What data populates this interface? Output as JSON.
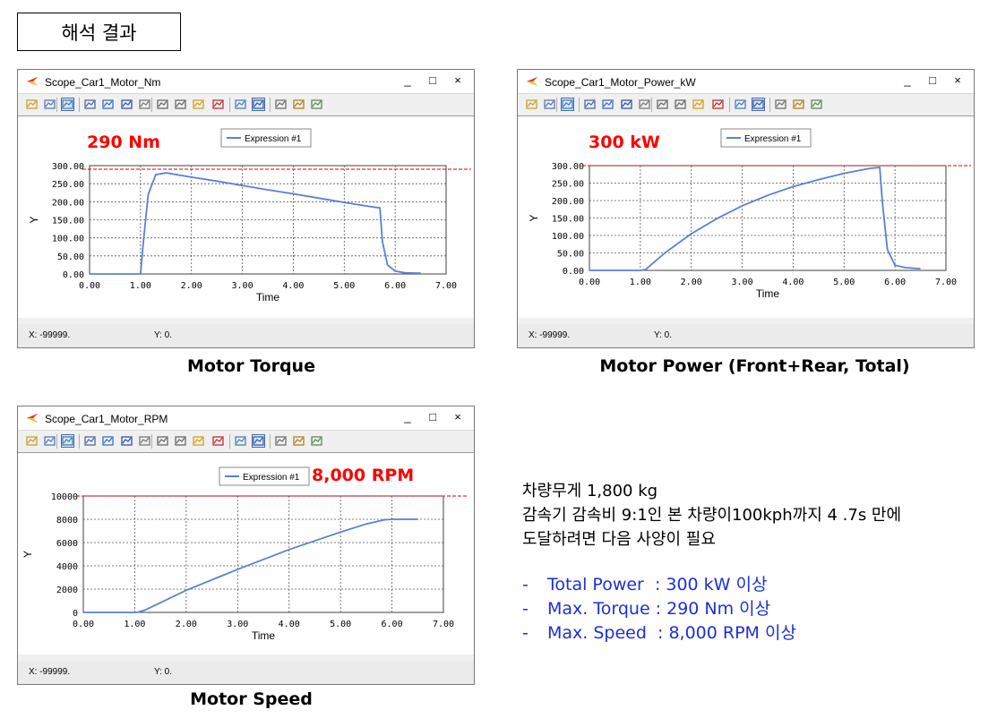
{
  "page_title": "해석 결과",
  "scopes": [
    {
      "window_title": "Scope_Car1_Motor_Nm",
      "legend": "Expression #1",
      "annotation": "290 Nm",
      "caption": "Motor Torque",
      "status_x": "X:  -99999.",
      "status_y": "Y:  0.",
      "ylabel": "Y",
      "xlabel": "Time",
      "x_ticks": [
        "0.00",
        "1.00",
        "2.00",
        "3.00",
        "4.00",
        "5.00",
        "6.00",
        "7.00"
      ],
      "y_ticks": [
        "0.00",
        "50.00",
        "100.00",
        "150.00",
        "200.00",
        "250.00",
        "300.00"
      ]
    },
    {
      "window_title": "Scope_Car1_Motor_Power_kW",
      "legend": "Expression #1",
      "annotation": "300 kW",
      "caption": "Motor Power (Front+Rear, Total)",
      "status_x": "X:  -99999.",
      "status_y": "Y:  0.",
      "ylabel": "Y",
      "xlabel": "Time",
      "x_ticks": [
        "0.00",
        "1.00",
        "2.00",
        "3.00",
        "4.00",
        "5.00",
        "6.00",
        "7.00"
      ],
      "y_ticks": [
        "0.00",
        "50.00",
        "100.00",
        "150.00",
        "200.00",
        "250.00",
        "300.00"
      ]
    },
    {
      "window_title": "Scope_Car1_Motor_RPM",
      "legend": "Expression #1",
      "annotation": "8,000 RPM",
      "caption": "Motor Speed",
      "status_x": "X:  -99999.",
      "status_y": "Y:  0.",
      "ylabel": "Y",
      "xlabel": "Time",
      "x_ticks": [
        "0.00",
        "1.00",
        "2.00",
        "3.00",
        "4.00",
        "5.00",
        "6.00",
        "7.00"
      ],
      "y_ticks": [
        "0",
        "2000",
        "4000",
        "6000",
        "8000",
        "10000"
      ]
    }
  ],
  "window_buttons": {
    "minimize": "_",
    "maximize": "□",
    "close": "×"
  },
  "toolbar_icons": [
    "open-icon",
    "copy-icon",
    "plot-icon",
    "zoom-icon",
    "autoscale-icon",
    "3d-icon",
    "grid-icon",
    "pan-h-icon",
    "pan-v-icon",
    "export-icon",
    "delete-icon",
    "chart-settings-icon",
    "legend-icon",
    "tools-icon",
    "properties-icon",
    "table-icon"
  ],
  "notes": {
    "line1": "차량무게 1,800 kg",
    "line2": "감속기 감속비 9:1인 본 차량이100kph까지 4 .7s 만에",
    "line3": "도달하려면 다음 사양이 필요"
  },
  "bullets": [
    {
      "dash": "-",
      "text": "Total Power  : 300 kW 이상"
    },
    {
      "dash": "-",
      "text": "Max. Torque : 290 Nm 이상"
    },
    {
      "dash": "-",
      "text": "Max. Speed  : 8,000 RPM 이상"
    }
  ],
  "colors": {
    "series": "#5b7fd6",
    "annotation": "#ff0000",
    "reference_line": "#d40000",
    "bullets": "#1c2fd8"
  },
  "chart_data": [
    {
      "type": "line",
      "xlabel": "Time",
      "ylabel": "Y",
      "xlim": [
        0,
        7
      ],
      "ylim": [
        0,
        300
      ],
      "grid": true,
      "legend_position": "top-center",
      "reference_line": 290,
      "series": [
        {
          "name": "Expression #1",
          "x": [
            0,
            1.0,
            1.05,
            1.15,
            1.3,
            1.5,
            2.0,
            2.5,
            3.0,
            3.5,
            4.0,
            4.5,
            5.0,
            5.5,
            5.7,
            5.75,
            5.85,
            6.0,
            6.2,
            6.5
          ],
          "y": [
            0,
            0,
            80,
            220,
            275,
            280,
            268,
            257,
            245,
            233,
            222,
            210,
            198,
            187,
            183,
            90,
            25,
            8,
            3,
            2
          ]
        }
      ]
    },
    {
      "type": "line",
      "xlabel": "Time",
      "ylabel": "Y",
      "xlim": [
        0,
        7
      ],
      "ylim": [
        0,
        300
      ],
      "grid": true,
      "legend_position": "top-center",
      "reference_line": 300,
      "series": [
        {
          "name": "Expression #1",
          "x": [
            0,
            1.0,
            1.1,
            1.5,
            2.0,
            2.5,
            3.0,
            3.5,
            4.0,
            4.5,
            5.0,
            5.5,
            5.7,
            5.75,
            5.85,
            6.0,
            6.2,
            6.5
          ],
          "y": [
            0,
            0,
            2,
            52,
            105,
            148,
            185,
            215,
            240,
            260,
            278,
            292,
            295,
            200,
            60,
            15,
            8,
            5
          ]
        }
      ]
    },
    {
      "type": "line",
      "xlabel": "Time",
      "ylabel": "Y",
      "xlim": [
        0,
        7
      ],
      "ylim": [
        0,
        10000
      ],
      "grid": true,
      "legend_position": "top-center",
      "reference_line": 10000,
      "series": [
        {
          "name": "Expression #1",
          "x": [
            0,
            1.05,
            1.2,
            2.0,
            3.0,
            4.0,
            5.0,
            5.5,
            5.85,
            6.0,
            6.5
          ],
          "y": [
            0,
            0,
            200,
            1900,
            3700,
            5400,
            6900,
            7600,
            7950,
            8000,
            8000
          ]
        }
      ]
    }
  ]
}
